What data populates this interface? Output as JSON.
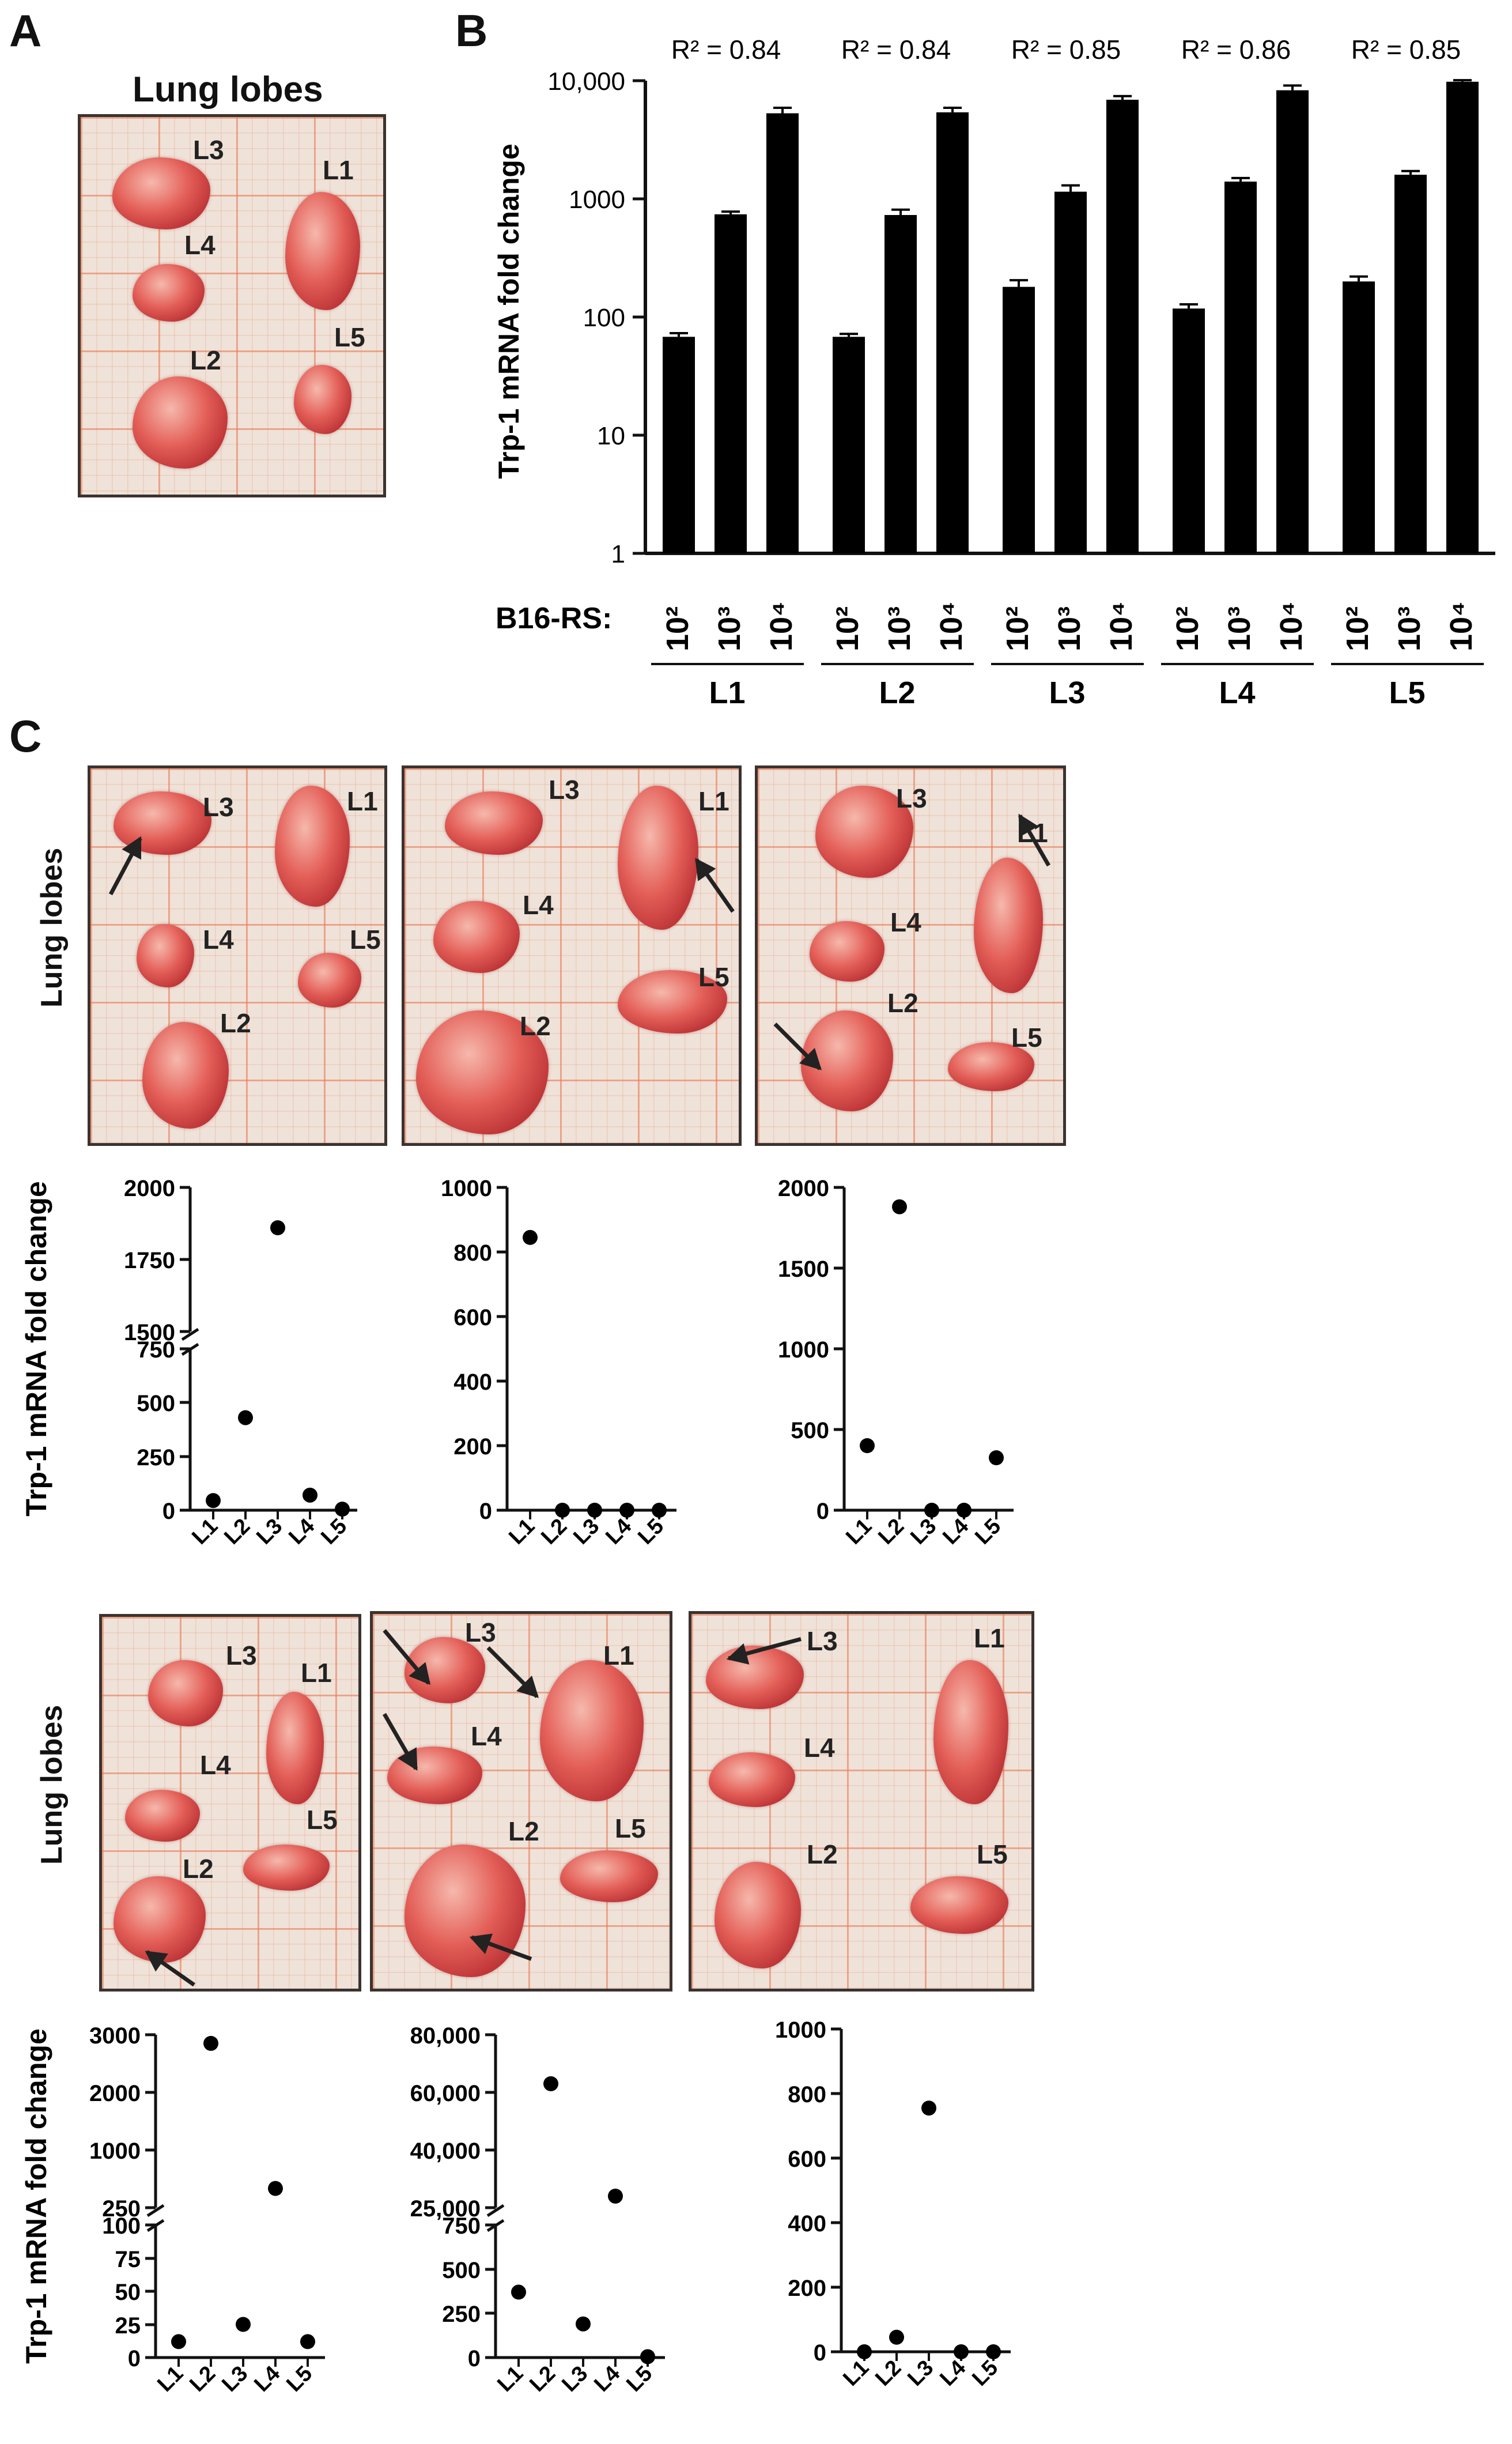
{
  "panels": {
    "a": "A",
    "b": "B",
    "c": "C"
  },
  "panel_a": {
    "title": "Lung lobes",
    "lobes": [
      "L3",
      "L1",
      "L4",
      "L2",
      "L5"
    ]
  },
  "panel_b": {
    "ylabel": "Trp-1 mRNA fold change",
    "row_label": "B16-RS:",
    "r2_labels": [
      "R² = 0.84",
      "R² = 0.84",
      "R² = 0.85",
      "R² = 0.86",
      "R² = 0.85"
    ],
    "yticks": [
      "10,000",
      "1000",
      "100",
      "10",
      "1"
    ],
    "dose_labels": [
      "10²",
      "10³",
      "10⁴"
    ],
    "group_labels": [
      "L1",
      "L2",
      "L3",
      "L4",
      "L5"
    ]
  },
  "panel_c": {
    "photo_ylabel": "Lung lobes",
    "scatter_ylabel": "Trp-1 mRNA fold change",
    "photo_labels": [
      "L1",
      "L2",
      "L3",
      "L4",
      "L5"
    ]
  },
  "chart_data": [
    {
      "type": "bar",
      "scale": "log",
      "ylabel": "Trp-1 mRNA fold change",
      "ylim": [
        1,
        10000
      ],
      "groups": [
        "L1",
        "L2",
        "L3",
        "L4",
        "L5"
      ],
      "categories": [
        "10²",
        "10³",
        "10⁴"
      ],
      "r2": [
        0.84,
        0.84,
        0.85,
        0.86,
        0.85
      ],
      "series": [
        {
          "group": "L1",
          "values": [
            68,
            740,
            5300
          ],
          "errors": [
            5,
            40,
            600
          ]
        },
        {
          "group": "L2",
          "values": [
            68,
            730,
            5400
          ],
          "errors": [
            4,
            80,
            500
          ]
        },
        {
          "group": "L3",
          "values": [
            180,
            1150,
            6900
          ],
          "errors": [
            25,
            150,
            500
          ]
        },
        {
          "group": "L4",
          "values": [
            118,
            1400,
            8300
          ],
          "errors": [
            10,
            100,
            800
          ]
        },
        {
          "group": "L5",
          "values": [
            200,
            1600,
            9800
          ],
          "errors": [
            20,
            120,
            300
          ]
        }
      ]
    },
    {
      "type": "scatter",
      "x": [
        "L1",
        "L2",
        "L3",
        "L4",
        "L5"
      ],
      "y": [
        45,
        430,
        1860,
        70,
        5
      ],
      "yticks": [
        "2000",
        "1750",
        "1500",
        "750",
        "500",
        "250",
        "0"
      ],
      "broken_axis": true
    },
    {
      "type": "scatter",
      "x": [
        "L1",
        "L2",
        "L3",
        "L4",
        "L5"
      ],
      "y": [
        845,
        0,
        0,
        0,
        0
      ],
      "yticks": [
        "1000",
        "800",
        "600",
        "400",
        "200",
        "0"
      ]
    },
    {
      "type": "scatter",
      "x": [
        "L1",
        "L2",
        "L3",
        "L4",
        "L5"
      ],
      "y": [
        400,
        1880,
        0,
        0,
        325
      ],
      "yticks": [
        "2000",
        "1500",
        "1000",
        "500",
        "0"
      ]
    },
    {
      "type": "scatter",
      "x": [
        "L1",
        "L2",
        "L3",
        "L4",
        "L5"
      ],
      "y": [
        12,
        2850,
        25,
        500,
        12
      ],
      "yticks": [
        "3000",
        "2000",
        "1000",
        "250",
        "100",
        "75",
        "50",
        "25",
        "0"
      ],
      "broken_axis": true
    },
    {
      "type": "scatter",
      "x": [
        "L1",
        "L2",
        "L3",
        "L4",
        "L5"
      ],
      "y": [
        370,
        63000,
        190,
        28000,
        5
      ],
      "yticks": [
        "80,000",
        "60,000",
        "40,000",
        "25,000",
        "750",
        "500",
        "250",
        "0"
      ],
      "broken_axis": true
    },
    {
      "type": "scatter",
      "x": [
        "L1",
        "L2",
        "L3",
        "L4",
        "L5"
      ],
      "y": [
        0,
        45,
        755,
        0,
        0
      ],
      "yticks": [
        "1000",
        "800",
        "600",
        "400",
        "200",
        "0"
      ]
    }
  ]
}
